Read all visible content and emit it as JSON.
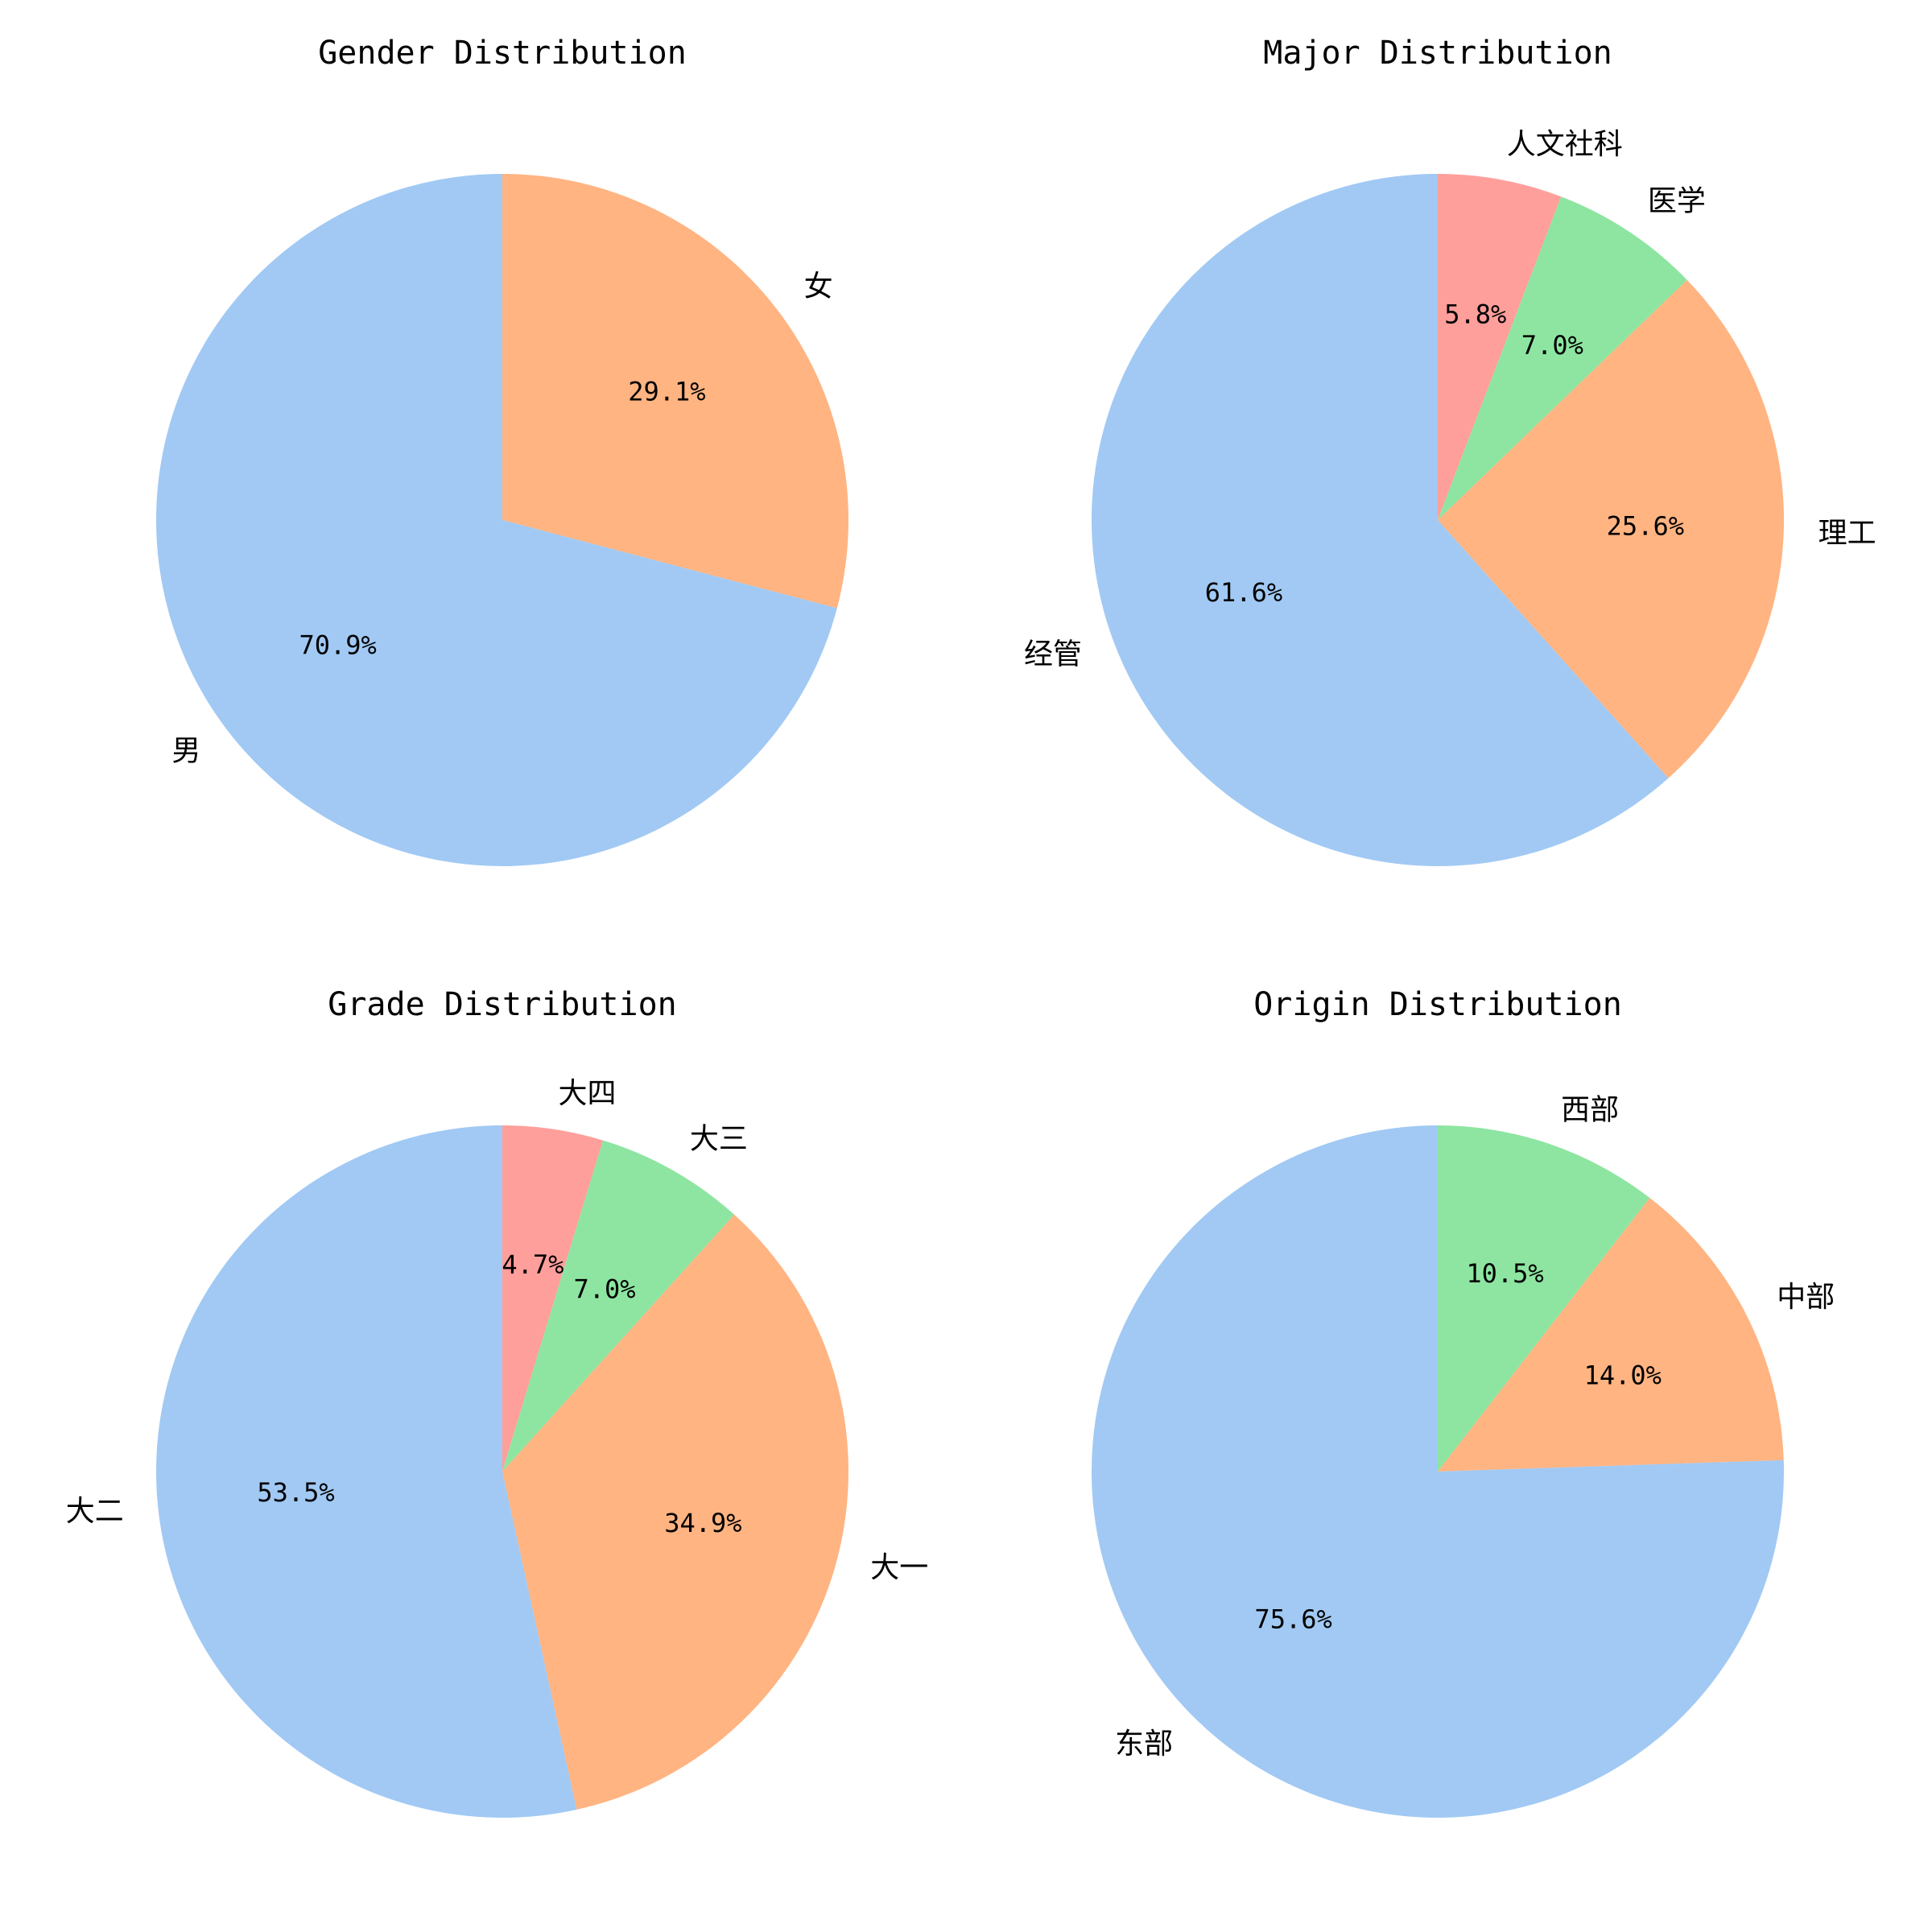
{
  "chart_data": [
    {
      "type": "pie",
      "title": "Gender Distribution",
      "start_angle_deg": 90,
      "direction": "clockwise",
      "slices": [
        {
          "label": "女",
          "value": 29.1,
          "pct_label": "29.1%",
          "color": "#ffb482"
        },
        {
          "label": "男",
          "value": 70.9,
          "pct_label": "70.9%",
          "color": "#a1c9f4"
        }
      ]
    },
    {
      "type": "pie",
      "title": "Major Distribution",
      "start_angle_deg": 90,
      "direction": "clockwise",
      "slices": [
        {
          "label": "人文社科",
          "value": 5.8,
          "pct_label": "5.8%",
          "color": "#ff9f9b"
        },
        {
          "label": "医学",
          "value": 7.0,
          "pct_label": "7.0%",
          "color": "#8de5a1"
        },
        {
          "label": "理工",
          "value": 25.6,
          "pct_label": "25.6%",
          "color": "#ffb482"
        },
        {
          "label": "经管",
          "value": 61.6,
          "pct_label": "61.6%",
          "color": "#a1c9f4"
        }
      ]
    },
    {
      "type": "pie",
      "title": "Grade Distribution",
      "start_angle_deg": 90,
      "direction": "clockwise",
      "slices": [
        {
          "label": "大四",
          "value": 4.7,
          "pct_label": "4.7%",
          "color": "#ff9f9b"
        },
        {
          "label": "大三",
          "value": 7.0,
          "pct_label": "7.0%",
          "color": "#8de5a1"
        },
        {
          "label": "大一",
          "value": 34.9,
          "pct_label": "34.9%",
          "color": "#ffb482"
        },
        {
          "label": "大二",
          "value": 53.5,
          "pct_label": "53.5%",
          "color": "#a1c9f4"
        }
      ]
    },
    {
      "type": "pie",
      "title": "Origin Distribution",
      "start_angle_deg": 90,
      "direction": "clockwise",
      "slices": [
        {
          "label": "西部",
          "value": 10.5,
          "pct_label": "10.5%",
          "color": "#8de5a1"
        },
        {
          "label": "中部",
          "value": 14.0,
          "pct_label": "14.0%",
          "color": "#ffb482"
        },
        {
          "label": "东部",
          "value": 75.6,
          "pct_label": "75.6%",
          "color": "#a1c9f4"
        }
      ]
    }
  ]
}
